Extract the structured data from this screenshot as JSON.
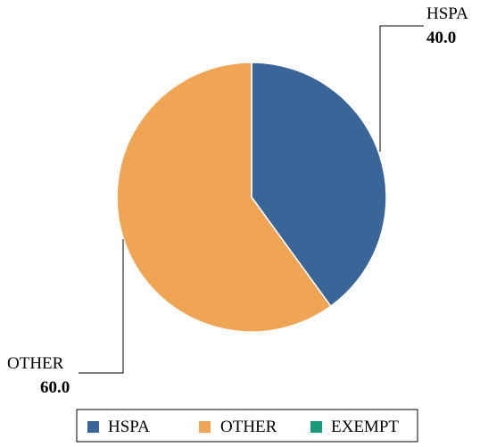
{
  "chart_data": {
    "type": "pie",
    "slices": [
      {
        "label": "HSPA",
        "value": 40.0,
        "value_text": "40.0",
        "color": "#3a6598"
      },
      {
        "label": "OTHER",
        "value": 60.0,
        "value_text": "60.0",
        "color": "#efa553"
      }
    ],
    "legend": {
      "placement": "bottom",
      "entries": [
        {
          "label": "HSPA",
          "color": "#3a6598"
        },
        {
          "label": "OTHER",
          "color": "#efa553"
        },
        {
          "label": "EXEMPT",
          "color": "#189a7a"
        }
      ]
    }
  }
}
